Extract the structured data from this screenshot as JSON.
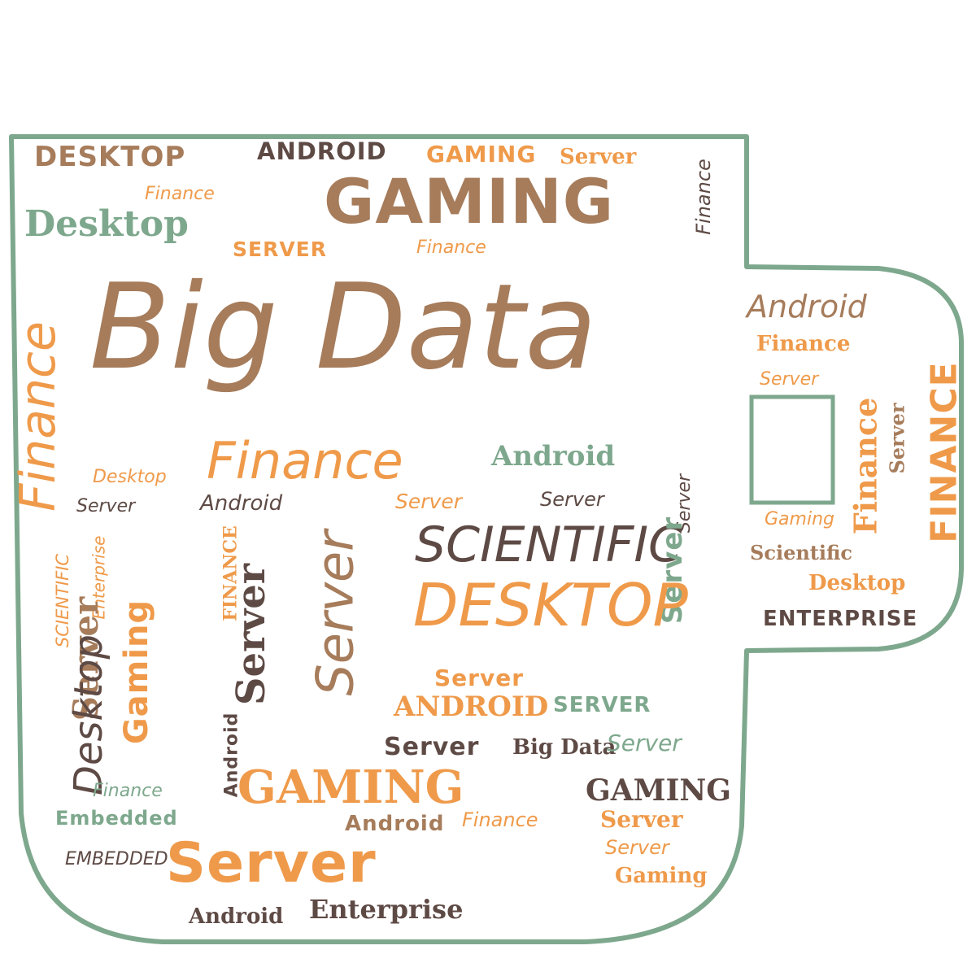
{
  "colors": {
    "outline": "#7ea88d",
    "brown": "#a67c5b",
    "orange": "#ef9a4a",
    "green": "#7ea88d",
    "dark": "#5e4a45"
  },
  "words": [
    "DESKTOP",
    "ANDROID",
    "GAMING",
    "Server",
    "Finance",
    "Finance",
    "Desktop",
    "GAMING",
    "SERVER",
    "Finance",
    "Big Data",
    "Android",
    "Finance",
    "Server",
    "Finance",
    "Server",
    "FINANCE",
    "Finance",
    "Finance",
    "Android",
    "Desktop",
    "Server",
    "Android",
    "Server",
    "Server",
    "Server",
    "Gaming",
    "Enterprise",
    "SCIENTIFIC",
    "Server",
    "Gaming",
    "FINANCE",
    "Server",
    "Android",
    "Server",
    "SCIENTIFIC",
    "Server",
    "Scientific",
    "Desktop",
    "DESKTOP",
    "ENTERPRISE",
    "Server",
    "Desktop",
    "ANDROID",
    "SERVER",
    "Server",
    "Big Data",
    "Server",
    "Finance",
    "GAMING",
    "Embedded",
    "GAMING",
    "Android",
    "Finance",
    "Server",
    "Server",
    "EMBEDDED",
    "Server",
    "Gaming",
    "Android",
    "Enterprise"
  ]
}
